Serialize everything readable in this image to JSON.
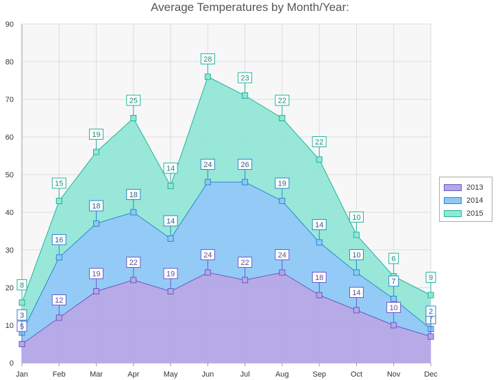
{
  "chart_data": {
    "type": "area",
    "stacked": true,
    "title": "Average Temperatures by Month/Year:",
    "categories": [
      "Jan",
      "Feb",
      "Mar",
      "Apr",
      "May",
      "Jun",
      "Jul",
      "Aug",
      "Sep",
      "Oct",
      "Nov",
      "Dec"
    ],
    "ylim": [
      0,
      90
    ],
    "yticks": [
      0,
      10,
      20,
      30,
      40,
      50,
      60,
      70,
      80,
      90
    ],
    "grid": true,
    "legend_position": "right",
    "series": [
      {
        "name": "2013",
        "values": [
          5,
          12,
          19,
          22,
          19,
          24,
          22,
          24,
          18,
          14,
          10,
          7
        ],
        "fill": "#b3a7e6",
        "stroke": "#6a57c8",
        "label_color": "#5a4a9a"
      },
      {
        "name": "2014",
        "values": [
          3,
          16,
          18,
          18,
          14,
          24,
          26,
          19,
          14,
          10,
          7,
          2
        ],
        "fill": "#8ec8f6",
        "stroke": "#2a86d0",
        "label_color": "#2a5f8a"
      },
      {
        "name": "2015",
        "values": [
          8,
          15,
          19,
          25,
          14,
          28,
          23,
          22,
          22,
          10,
          6,
          9
        ],
        "fill": "#92e6d6",
        "stroke": "#1fb39a",
        "label_color": "#1a8a78"
      }
    ]
  }
}
